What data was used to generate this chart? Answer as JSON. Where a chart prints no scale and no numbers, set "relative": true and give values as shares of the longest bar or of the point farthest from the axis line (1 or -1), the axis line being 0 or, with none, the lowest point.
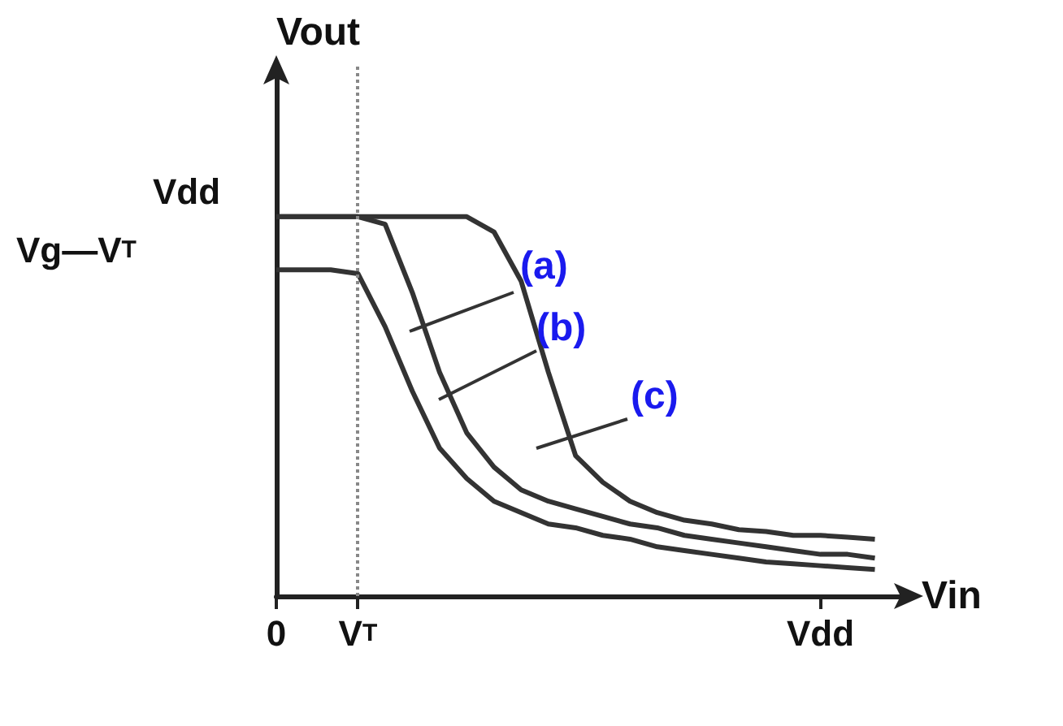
{
  "chart_data": {
    "type": "line",
    "xlabel": "Vin",
    "ylabel": "Vout",
    "relative": true,
    "grid": false,
    "marker": "none",
    "line_style": "solid",
    "categories": [
      "0",
      null,
      null,
      "V$_{T}$",
      null,
      null,
      null,
      null,
      null,
      null,
      null,
      null,
      null,
      null,
      null,
      null,
      null,
      null,
      null,
      null,
      "Vdd",
      null,
      null,
      null
    ],
    "ref_lines": [
      {
        "axis": "x",
        "value": "V$_{T}$",
        "color": "#888888",
        "line_style": "dotted"
      }
    ],
    "annotations": [
      "(a)",
      "(b)",
      "(c)",
      "Vdd",
      "Vg—V$_{T}$"
    ],
    "series": [
      {
        "color": "#333333",
        "values": [
          0.86,
          0.86,
          0.86,
          0.85,
          0.71,
          0.54,
          0.39,
          0.31,
          0.25,
          0.22,
          0.19,
          0.18,
          0.16,
          0.15,
          0.13,
          0.12,
          0.11,
          0.1,
          0.09,
          0.085,
          0.08,
          0.075,
          0.07,
          null
        ]
      },
      {
        "color": "#333333",
        "values": [
          1,
          1,
          1,
          1,
          0.98,
          0.8,
          0.59,
          0.43,
          0.34,
          0.28,
          0.25,
          0.23,
          0.21,
          0.19,
          0.18,
          0.16,
          0.15,
          0.14,
          0.13,
          0.12,
          0.11,
          0.11,
          0.1,
          null
        ]
      },
      {
        "color": "#333333",
        "values": [
          1,
          1,
          1,
          1,
          1,
          1,
          1,
          1,
          0.96,
          0.83,
          0.59,
          0.37,
          0.3,
          0.25,
          0.22,
          0.2,
          0.19,
          0.175,
          0.17,
          0.16,
          0.16,
          0.155,
          0.15,
          null
        ]
      }
    ]
  }
}
